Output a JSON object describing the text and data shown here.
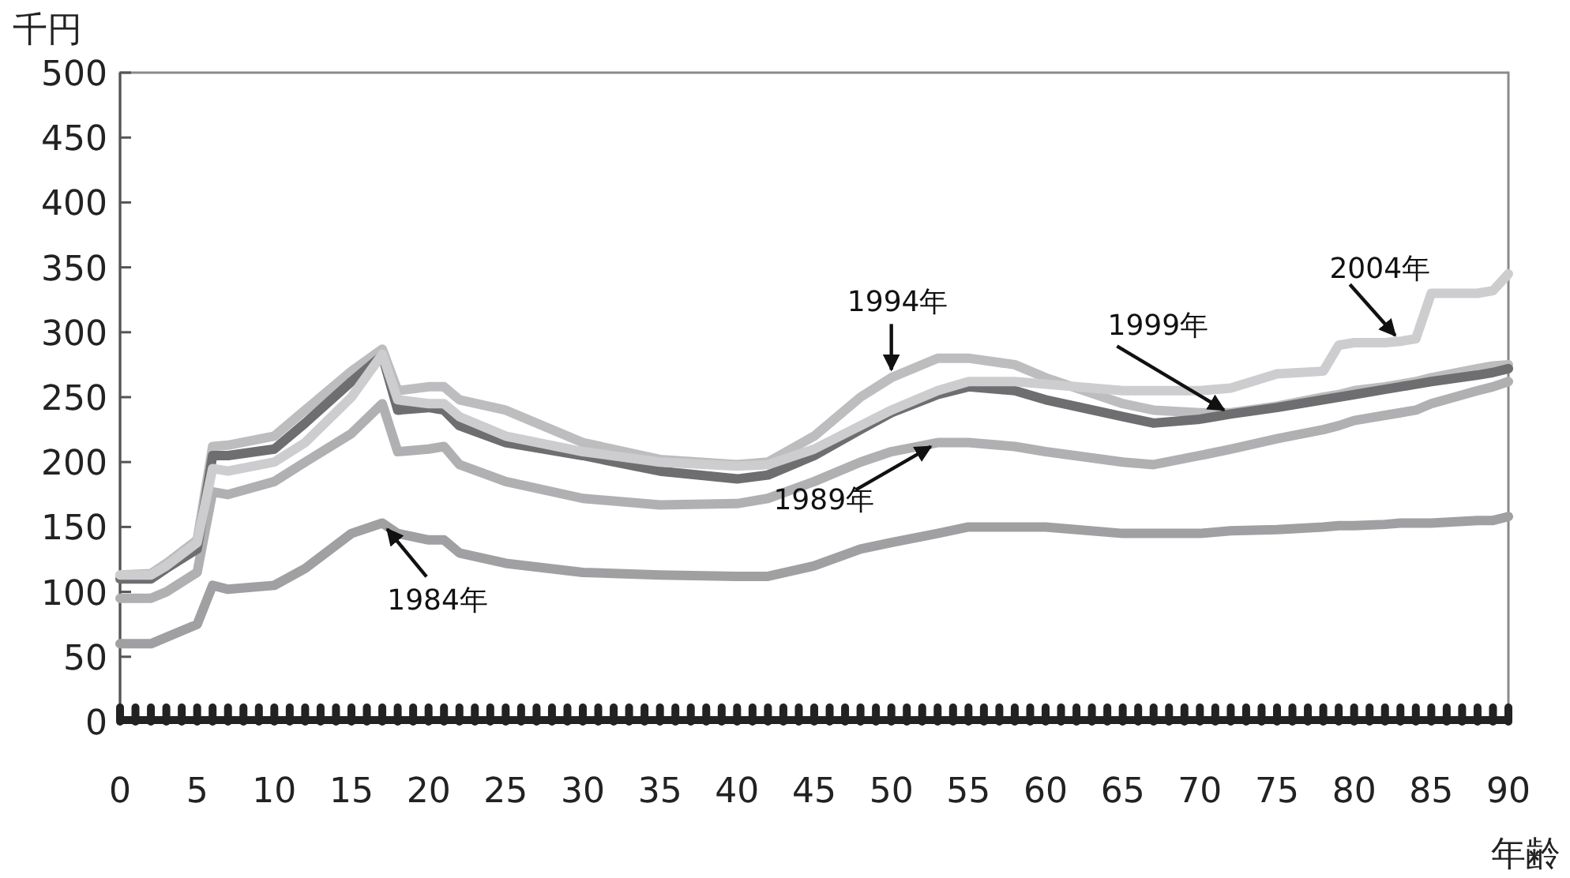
{
  "chart_data": {
    "type": "line",
    "xlabel": "年齢",
    "ylabel": "千円",
    "x": [
      0,
      2,
      3,
      5,
      6,
      7,
      10,
      12,
      15,
      17,
      18,
      20,
      21,
      22,
      25,
      30,
      35,
      40,
      42,
      45,
      48,
      50,
      53,
      55,
      58,
      60,
      65,
      67,
      70,
      72,
      75,
      78,
      79,
      80,
      82,
      83,
      84,
      85,
      88,
      89,
      90
    ],
    "series": [
      {
        "name": "1984年",
        "color": "#a0a0a2",
        "values": [
          60,
          60,
          65,
          75,
          105,
          102,
          105,
          118,
          145,
          153,
          145,
          140,
          140,
          130,
          122,
          115,
          113,
          112,
          112,
          120,
          133,
          138,
          145,
          150,
          150,
          150,
          145,
          145,
          145,
          147,
          148,
          150,
          151,
          151,
          152,
          153,
          153,
          153,
          155,
          155,
          158
        ]
      },
      {
        "name": "1989年",
        "color": "#b0b0b2",
        "values": [
          95,
          95,
          100,
          115,
          177,
          175,
          185,
          200,
          222,
          245,
          208,
          210,
          212,
          198,
          185,
          172,
          167,
          168,
          172,
          185,
          200,
          208,
          215,
          215,
          212,
          208,
          200,
          198,
          205,
          210,
          218,
          225,
          228,
          232,
          236,
          238,
          240,
          245,
          255,
          258,
          262
        ]
      },
      {
        "name": "1994年",
        "color": "#bdbdbf",
        "values": [
          113,
          114,
          122,
          140,
          212,
          213,
          220,
          240,
          270,
          287,
          255,
          258,
          258,
          248,
          240,
          215,
          202,
          198,
          200,
          220,
          250,
          265,
          280,
          280,
          275,
          265,
          245,
          240,
          238,
          238,
          243,
          250,
          252,
          255,
          258,
          260,
          262,
          265,
          272,
          274,
          275
        ]
      },
      {
        "name": "1999年",
        "color": "#6e6e70",
        "values": [
          110,
          110,
          118,
          133,
          205,
          205,
          210,
          230,
          262,
          282,
          240,
          242,
          240,
          228,
          215,
          205,
          193,
          187,
          190,
          205,
          225,
          238,
          252,
          258,
          255,
          248,
          235,
          230,
          233,
          237,
          242,
          248,
          250,
          252,
          256,
          258,
          260,
          262,
          267,
          269,
          272
        ]
      },
      {
        "name": "2004年",
        "color": "#cdcdcf",
        "values": [
          113,
          113,
          120,
          138,
          195,
          193,
          200,
          215,
          250,
          283,
          248,
          245,
          245,
          235,
          220,
          208,
          200,
          197,
          198,
          210,
          228,
          240,
          255,
          262,
          262,
          260,
          255,
          255,
          255,
          257,
          268,
          270,
          290,
          292,
          292,
          293,
          295,
          330,
          330,
          332,
          345
        ]
      }
    ],
    "xlim": [
      0,
      90
    ],
    "ylim": [
      0,
      500
    ],
    "yticks": [
      0,
      50,
      100,
      150,
      200,
      250,
      300,
      350,
      400,
      450,
      500
    ],
    "xticks": [
      0,
      {
        "value": 1,
        "label": null
      },
      {
        "value": 2,
        "label": null
      },
      {
        "value": 3,
        "label": null
      },
      {
        "value": 4,
        "label": null
      },
      5,
      {
        "value": 6,
        "label": null
      },
      {
        "value": 7,
        "label": null
      },
      {
        "value": 8,
        "label": null
      },
      {
        "value": 9,
        "label": null
      },
      10,
      {
        "value": 11,
        "label": null
      },
      {
        "value": 12,
        "label": null
      },
      {
        "value": 13,
        "label": null
      },
      {
        "value": 14,
        "label": null
      },
      15,
      {
        "value": 16,
        "label": null
      },
      {
        "value": 17,
        "label": null
      },
      {
        "value": 18,
        "label": null
      },
      {
        "value": 19,
        "label": null
      },
      20,
      {
        "value": 21,
        "label": null
      },
      {
        "value": 22,
        "label": null
      },
      {
        "value": 23,
        "label": null
      },
      {
        "value": 24,
        "label": null
      },
      25,
      {
        "value": 26,
        "label": null
      },
      {
        "value": 27,
        "label": null
      },
      {
        "value": 28,
        "label": null
      },
      {
        "value": 29,
        "label": null
      },
      30,
      {
        "value": 31,
        "label": null
      },
      {
        "value": 32,
        "label": null
      },
      {
        "value": 33,
        "label": null
      },
      {
        "value": 34,
        "label": null
      },
      35,
      {
        "value": 36,
        "label": null
      },
      {
        "value": 37,
        "label": null
      },
      {
        "value": 38,
        "label": null
      },
      {
        "value": 39,
        "label": null
      },
      40,
      {
        "value": 41,
        "label": null
      },
      {
        "value": 42,
        "label": null
      },
      {
        "value": 43,
        "label": null
      },
      {
        "value": 44,
        "label": null
      },
      45,
      {
        "value": 46,
        "label": null
      },
      {
        "value": 47,
        "label": null
      },
      {
        "value": 48,
        "label": null
      },
      {
        "value": 49,
        "label": null
      },
      50,
      {
        "value": 51,
        "label": null
      },
      {
        "value": 52,
        "label": null
      },
      {
        "value": 53,
        "label": null
      },
      {
        "value": 54,
        "label": null
      },
      55,
      {
        "value": 56,
        "label": null
      },
      {
        "value": 57,
        "label": null
      },
      {
        "value": 58,
        "label": null
      },
      {
        "value": 59,
        "label": null
      },
      60,
      {
        "value": 61,
        "label": null
      },
      {
        "value": 62,
        "label": null
      },
      {
        "value": 63,
        "label": null
      },
      {
        "value": 64,
        "label": null
      },
      65,
      {
        "value": 66,
        "label": null
      },
      {
        "value": 67,
        "label": null
      },
      {
        "value": 68,
        "label": null
      },
      {
        "value": 69,
        "label": null
      },
      70,
      {
        "value": 71,
        "label": null
      },
      {
        "value": 72,
        "label": null
      },
      {
        "value": 73,
        "label": null
      },
      {
        "value": 74,
        "label": null
      },
      75,
      {
        "value": 76,
        "label": null
      },
      {
        "value": 77,
        "label": null
      },
      {
        "value": 78,
        "label": null
      },
      {
        "value": 79,
        "label": null
      },
      80,
      {
        "value": 81,
        "label": null
      },
      {
        "value": 82,
        "label": null
      },
      {
        "value": 83,
        "label": null
      },
      {
        "value": 84,
        "label": null
      },
      85,
      {
        "value": 86,
        "label": null
      },
      {
        "value": 87,
        "label": null
      },
      {
        "value": 88,
        "label": null
      },
      {
        "value": 89,
        "label": null
      },
      90
    ],
    "grid": false,
    "marker": "none",
    "line_style": "solid"
  }
}
